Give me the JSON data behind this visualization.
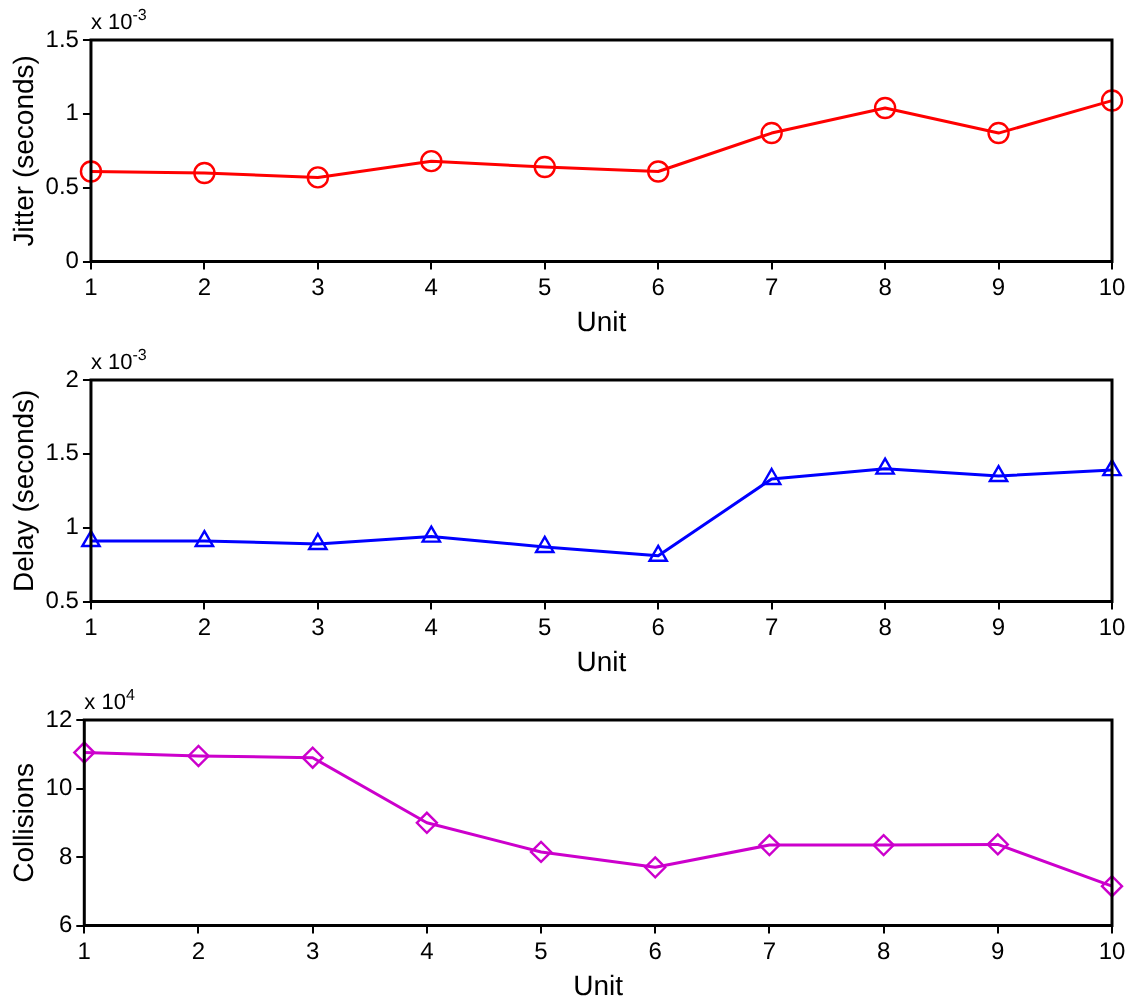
{
  "chart_data": [
    {
      "type": "line",
      "x": [
        1,
        2,
        3,
        4,
        5,
        6,
        7,
        8,
        9,
        10
      ],
      "series": [
        {
          "color": "#ff0000",
          "values": [
            0.61,
            0.6,
            0.57,
            0.68,
            0.64,
            0.61,
            0.87,
            1.04,
            0.87,
            1.09
          ]
        }
      ],
      "marker": "circle",
      "xlim": [
        1,
        10
      ],
      "xticks": [
        1,
        2,
        3,
        4,
        5,
        6,
        7,
        8,
        9,
        10
      ],
      "ylim": [
        0,
        1.5
      ],
      "yticks": [
        0,
        0.5,
        1,
        1.5
      ],
      "xlabel": "Unit",
      "ylabel": "Jitter (seconds)",
      "annotations": [
        "x 10$^{-3}$"
      ]
    },
    {
      "type": "line",
      "x": [
        1,
        2,
        3,
        4,
        5,
        6,
        7,
        8,
        9,
        10
      ],
      "series": [
        {
          "color": "#0000ff",
          "values": [
            0.91,
            0.91,
            0.89,
            0.94,
            0.87,
            0.81,
            1.33,
            1.4,
            1.35,
            1.39
          ]
        }
      ],
      "marker": "triangle",
      "xlim": [
        1,
        10
      ],
      "xticks": [
        1,
        2,
        3,
        4,
        5,
        6,
        7,
        8,
        9,
        10
      ],
      "ylim": [
        0.5,
        2
      ],
      "yticks": [
        0.5,
        1,
        1.5,
        2
      ],
      "xlabel": "Unit",
      "ylabel": "Delay (seconds)",
      "annotations": [
        "x 10$^{-3}$"
      ]
    },
    {
      "type": "line",
      "x": [
        1,
        2,
        3,
        4,
        5,
        6,
        7,
        8,
        9,
        10
      ],
      "series": [
        {
          "color": "#cc00cc",
          "values": [
            11.05,
            10.95,
            10.9,
            9.0,
            8.15,
            7.7,
            8.35,
            8.35,
            8.37,
            7.15
          ]
        }
      ],
      "marker": "diamond",
      "xlim": [
        1,
        10
      ],
      "xticks": [
        1,
        2,
        3,
        4,
        5,
        6,
        7,
        8,
        9,
        10
      ],
      "ylim": [
        6,
        12
      ],
      "yticks": [
        6,
        8,
        10,
        12
      ],
      "xlabel": "Unit",
      "ylabel": "Collisions",
      "annotations": [
        "x 10$^{4}$"
      ]
    }
  ]
}
